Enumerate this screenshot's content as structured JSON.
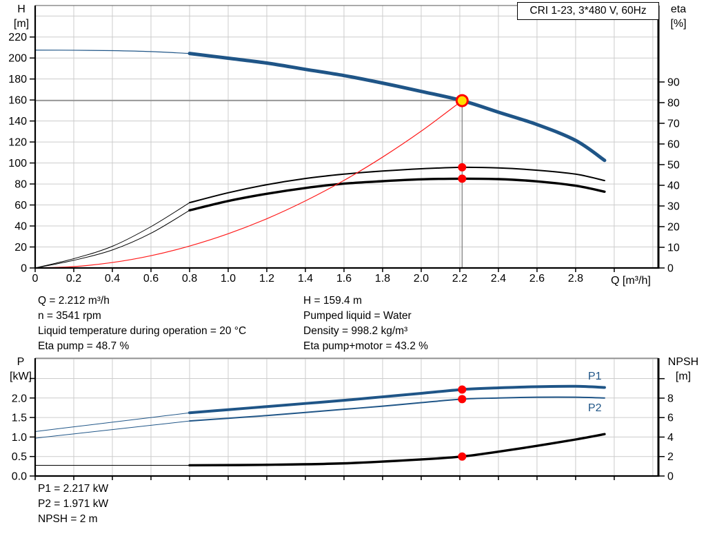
{
  "title": "CRI 1-23, 3*480 V, 60Hz",
  "colors": {
    "curve_blue": "#1F5587",
    "curve_black": "#000000",
    "system_curve_red": "#FF1A1A",
    "dot_red": "#FF0000",
    "duty_fill_yellow": "#FFDD00",
    "grid": "#CCCCCC",
    "ref_line_gray": "#808080",
    "axis": "#000000"
  },
  "info": {
    "left": [
      "Q = 2.212 m³/h",
      "n = 3541 rpm",
      "Liquid temperature during operation = 20 °C",
      "Eta pump = 48.7 %"
    ],
    "right": [
      "H = 159.4 m",
      "Pumped liquid = Water",
      "Density = 998.2 kg/m³",
      "Eta pump+motor = 43.2 %"
    ],
    "power": [
      "P1 = 2.217 kW",
      "P2 = 1.971 kW",
      "NPSH = 2 m"
    ]
  },
  "chart_data": [
    {
      "id": "hq",
      "type": "line",
      "plot": {
        "l": 51,
        "r": 955,
        "t": 8,
        "b": 389
      },
      "x": {
        "min": 0,
        "max": 3.229,
        "title": "Q [m³/h]",
        "ticks": [
          0,
          0.2,
          0.4,
          0.6,
          0.8,
          1.0,
          1.2,
          1.4,
          1.6,
          1.8,
          2.0,
          2.2,
          2.4,
          2.6,
          2.8,
          3.0
        ],
        "labels": [
          "0",
          "0.2",
          "0.4",
          "0.6",
          "0.8",
          "1.0",
          "1.2",
          "1.4",
          "1.6",
          "1.8",
          "2.0",
          "2.2",
          "2.4",
          "2.6",
          "2.8",
          ""
        ],
        "grid_step": 0.2
      },
      "left": {
        "min": 0,
        "max": 250,
        "title": "H\n[m]",
        "ticks": [
          0,
          20,
          40,
          60,
          80,
          100,
          120,
          140,
          160,
          180,
          200,
          220
        ],
        "labels": [
          "0",
          "20",
          "40",
          "60",
          "80",
          "100",
          "120",
          "140",
          "160",
          "180",
          "200",
          "220"
        ],
        "grid_step": 20
      },
      "right": {
        "min": 0,
        "max": 127,
        "title": "eta\n[%]",
        "ticks": [
          0,
          10,
          20,
          30,
          40,
          50,
          60,
          70,
          80,
          90
        ],
        "labels": [
          "0",
          "10",
          "20",
          "30",
          "40",
          "50",
          "60",
          "70",
          "80",
          "90"
        ]
      },
      "ref_lines": [
        {
          "name": "duty-head-line",
          "type": "h",
          "axis": "left",
          "y": 159.4,
          "x0": 0,
          "x1": 2.212
        },
        {
          "name": "duty-flow-line",
          "type": "v",
          "axis": "left",
          "x": 2.212,
          "y0": 0,
          "y1": 159.4
        }
      ],
      "series": [
        {
          "name": "head-curve-lead",
          "axis": "left",
          "color": "#1F5587",
          "w": 1.2,
          "pts": [
            [
              0,
              207.5
            ],
            [
              0.2,
              207.4
            ],
            [
              0.4,
              207.0
            ],
            [
              0.6,
              206.1
            ],
            [
              0.8,
              204.3
            ]
          ]
        },
        {
          "name": "head-curve",
          "axis": "left",
          "color": "#1F5587",
          "w": 5,
          "pts": [
            [
              0.8,
              204.3
            ],
            [
              1.0,
              199.8
            ],
            [
              1.2,
              195.2
            ],
            [
              1.4,
              189.2
            ],
            [
              1.6,
              183.3
            ],
            [
              1.8,
              176.1
            ],
            [
              2.0,
              168.2
            ],
            [
              2.212,
              159.4
            ],
            [
              2.4,
              148.4
            ],
            [
              2.6,
              136.6
            ],
            [
              2.8,
              121.5
            ],
            [
              2.95,
              102.5
            ]
          ]
        },
        {
          "name": "eta-pump-lead",
          "axis": "right",
          "color": "#000000",
          "w": 1,
          "pts": [
            [
              0,
              0
            ],
            [
              0.2,
              4.5
            ],
            [
              0.4,
              10.5
            ],
            [
              0.6,
              20.0
            ],
            [
              0.8,
              31.6
            ]
          ]
        },
        {
          "name": "eta-pump-curve",
          "axis": "right",
          "color": "#000000",
          "w": 2,
          "pts": [
            [
              0.8,
              31.6
            ],
            [
              1.0,
              36.4
            ],
            [
              1.2,
              40.3
            ],
            [
              1.4,
              43.3
            ],
            [
              1.6,
              45.4
            ],
            [
              1.8,
              46.9
            ],
            [
              2.0,
              48.0
            ],
            [
              2.212,
              48.7
            ],
            [
              2.4,
              48.4
            ],
            [
              2.6,
              47.3
            ],
            [
              2.8,
              45.4
            ],
            [
              2.95,
              42.3
            ]
          ]
        },
        {
          "name": "eta-pump-motor-lead",
          "axis": "right",
          "color": "#000000",
          "w": 1,
          "pts": [
            [
              0,
              0
            ],
            [
              0.2,
              3.7
            ],
            [
              0.4,
              8.7
            ],
            [
              0.6,
              16.8
            ],
            [
              0.8,
              27.9
            ]
          ]
        },
        {
          "name": "eta-pump-motor-curve",
          "axis": "right",
          "color": "#000000",
          "w": 3.4,
          "pts": [
            [
              0.8,
              27.9
            ],
            [
              1.0,
              32.4
            ],
            [
              1.2,
              35.9
            ],
            [
              1.4,
              38.7
            ],
            [
              1.6,
              40.8
            ],
            [
              1.8,
              42.0
            ],
            [
              2.0,
              42.9
            ],
            [
              2.212,
              43.2
            ],
            [
              2.4,
              43.0
            ],
            [
              2.6,
              41.9
            ],
            [
              2.8,
              39.8
            ],
            [
              2.95,
              36.9
            ]
          ]
        },
        {
          "name": "system-curve",
          "axis": "left",
          "color": "#FF1A1A",
          "w": 1.2,
          "pts": [
            [
              0,
              0
            ],
            [
              0.2,
              1.3
            ],
            [
              0.4,
              5.2
            ],
            [
              0.6,
              11.7
            ],
            [
              0.8,
              20.9
            ],
            [
              1.0,
              32.6
            ],
            [
              1.2,
              46.9
            ],
            [
              1.4,
              63.9
            ],
            [
              1.6,
              83.4
            ],
            [
              1.8,
              105.6
            ],
            [
              2.0,
              130.3
            ],
            [
              2.212,
              159.4
            ]
          ]
        }
      ],
      "points": [
        {
          "name": "duty-point",
          "x": 2.212,
          "y": 159.4,
          "axis": "left",
          "style": "duty"
        },
        {
          "name": "eta-pump-dot",
          "x": 2.212,
          "y": 48.7,
          "axis": "right",
          "style": "dot"
        },
        {
          "name": "eta-pump-motor-dot",
          "x": 2.212,
          "y": 43.2,
          "axis": "right",
          "style": "dot"
        }
      ],
      "line_labels": []
    },
    {
      "id": "power-npsh",
      "type": "line",
      "plot": {
        "l": 51,
        "r": 955,
        "t": 520,
        "b": 691
      },
      "x": {
        "min": 0,
        "max": 3.229,
        "title": "",
        "ticks": [
          0,
          0.2,
          0.4,
          0.6,
          0.8,
          1.0,
          1.2,
          1.4,
          1.6,
          1.8,
          2.0,
          2.2,
          2.4,
          2.6,
          2.8,
          3.0
        ],
        "labels": [
          "",
          "",
          "",
          "",
          "",
          "",
          "",
          "",
          "",
          "",
          "",
          "",
          "",
          "",
          "",
          ""
        ],
        "grid_step": 0.2
      },
      "left": {
        "min": 0,
        "max": 3.02,
        "title": "P\n[kW]",
        "ticks": [
          0,
          0.5,
          1.0,
          1.5,
          2.0,
          2.5
        ],
        "labels": [
          "0.0",
          "0.5",
          "1.0",
          "1.5",
          "2.0",
          ""
        ],
        "grid_step": 0.5
      },
      "right": {
        "min": 0,
        "max": 12.1,
        "title": "NPSH\n[m]",
        "ticks": [
          0,
          2,
          4,
          6,
          8,
          10
        ],
        "labels": [
          "0",
          "2",
          "4",
          "6",
          "8",
          ""
        ]
      },
      "ref_lines": [],
      "series": [
        {
          "name": "p1-curve-lead",
          "axis": "left",
          "color": "#1F5587",
          "w": 1,
          "pts": [
            [
              0,
              1.14
            ],
            [
              0.2,
              1.26
            ],
            [
              0.4,
              1.38
            ],
            [
              0.6,
              1.5
            ],
            [
              0.8,
              1.62
            ]
          ]
        },
        {
          "name": "p1-curve",
          "axis": "left",
          "color": "#1F5587",
          "w": 4,
          "pts": [
            [
              0.8,
              1.62
            ],
            [
              1.0,
              1.7
            ],
            [
              1.2,
              1.78
            ],
            [
              1.4,
              1.86
            ],
            [
              1.6,
              1.94
            ],
            [
              1.8,
              2.03
            ],
            [
              2.0,
              2.12
            ],
            [
              2.212,
              2.217
            ],
            [
              2.4,
              2.26
            ],
            [
              2.6,
              2.29
            ],
            [
              2.8,
              2.3
            ],
            [
              2.95,
              2.27
            ]
          ]
        },
        {
          "name": "p2-curve-lead",
          "axis": "left",
          "color": "#1F5587",
          "w": 1,
          "pts": [
            [
              0,
              0.97
            ],
            [
              0.2,
              1.08
            ],
            [
              0.4,
              1.19
            ],
            [
              0.6,
              1.3
            ],
            [
              0.8,
              1.41
            ]
          ]
        },
        {
          "name": "p2-curve",
          "axis": "left",
          "color": "#1F5587",
          "w": 2,
          "pts": [
            [
              0.8,
              1.41
            ],
            [
              1.0,
              1.48
            ],
            [
              1.2,
              1.55
            ],
            [
              1.4,
              1.63
            ],
            [
              1.6,
              1.71
            ],
            [
              1.8,
              1.79
            ],
            [
              2.0,
              1.88
            ],
            [
              2.212,
              1.971
            ],
            [
              2.4,
              2.0
            ],
            [
              2.6,
              2.02
            ],
            [
              2.8,
              2.02
            ],
            [
              2.95,
              2.0
            ]
          ]
        },
        {
          "name": "npsh-curve-lead",
          "axis": "right",
          "color": "#000000",
          "w": 1,
          "pts": [
            [
              0,
              1.1
            ],
            [
              0.4,
              1.1
            ],
            [
              0.8,
              1.1
            ]
          ]
        },
        {
          "name": "npsh-curve",
          "axis": "right",
          "color": "#000000",
          "w": 3.4,
          "pts": [
            [
              0.8,
              1.1
            ],
            [
              1.2,
              1.15
            ],
            [
              1.6,
              1.3
            ],
            [
              2.0,
              1.7
            ],
            [
              2.212,
              2.0
            ],
            [
              2.4,
              2.5
            ],
            [
              2.6,
              3.1
            ],
            [
              2.8,
              3.75
            ],
            [
              2.95,
              4.3
            ]
          ]
        }
      ],
      "points": [
        {
          "name": "p1-dot",
          "x": 2.212,
          "y": 2.217,
          "axis": "left",
          "style": "dot"
        },
        {
          "name": "p2-dot",
          "x": 2.212,
          "y": 1.971,
          "axis": "left",
          "style": "dot"
        },
        {
          "name": "npsh-dot",
          "x": 2.212,
          "y": 2.0,
          "axis": "right",
          "style": "dot"
        }
      ],
      "line_labels": [
        {
          "name": "p1-curve-label",
          "text": "P1",
          "x": 2.9,
          "y": 2.52
        },
        {
          "name": "p2-curve-label",
          "text": "P2",
          "x": 2.9,
          "y": 1.72
        }
      ]
    }
  ]
}
